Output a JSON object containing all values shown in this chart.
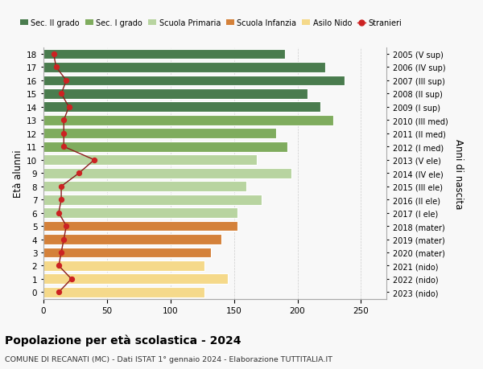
{
  "ages": [
    18,
    17,
    16,
    15,
    14,
    13,
    12,
    11,
    10,
    9,
    8,
    7,
    6,
    5,
    4,
    3,
    2,
    1,
    0
  ],
  "years": [
    "2005 (V sup)",
    "2006 (IV sup)",
    "2007 (III sup)",
    "2008 (II sup)",
    "2009 (I sup)",
    "2010 (III med)",
    "2011 (II med)",
    "2012 (I med)",
    "2013 (V ele)",
    "2014 (IV ele)",
    "2015 (III ele)",
    "2016 (II ele)",
    "2017 (I ele)",
    "2018 (mater)",
    "2019 (mater)",
    "2020 (mater)",
    "2021 (nido)",
    "2022 (nido)",
    "2023 (nido)"
  ],
  "bar_values": [
    190,
    222,
    237,
    208,
    218,
    228,
    183,
    192,
    168,
    195,
    160,
    172,
    153,
    153,
    140,
    132,
    127,
    145,
    127
  ],
  "stranieri": [
    8,
    10,
    18,
    14,
    20,
    16,
    16,
    16,
    40,
    28,
    14,
    14,
    12,
    18,
    16,
    14,
    12,
    22,
    12
  ],
  "bar_colors": [
    "#4a7c4e",
    "#4a7c4e",
    "#4a7c4e",
    "#4a7c4e",
    "#4a7c4e",
    "#7fac5e",
    "#7fac5e",
    "#7fac5e",
    "#b8d4a0",
    "#b8d4a0",
    "#b8d4a0",
    "#b8d4a0",
    "#b8d4a0",
    "#d4813a",
    "#d4813a",
    "#d4813a",
    "#f5d98a",
    "#f5d98a",
    "#f5d98a"
  ],
  "legend_labels": [
    "Sec. II grado",
    "Sec. I grado",
    "Scuola Primaria",
    "Scuola Infanzia",
    "Asilo Nido",
    "Stranieri"
  ],
  "legend_colors": [
    "#4a7c4e",
    "#7fac5e",
    "#b8d4a0",
    "#d4813a",
    "#f5d98a",
    "#cc2222"
  ],
  "ylabel_left": "Età alunni",
  "ylabel_right": "Anni di nascita",
  "title": "Popolazione per età scolastica - 2024",
  "subtitle": "COMUNE DI RECANATI (MC) - Dati ISTAT 1° gennaio 2024 - Elaborazione TUTTITALIA.IT",
  "xlim": [
    0,
    270
  ],
  "xticks": [
    0,
    50,
    100,
    150,
    200,
    250
  ],
  "ylim": [
    -0.5,
    18.5
  ],
  "bg_color": "#f8f8f8",
  "grid_color": "#cccccc",
  "bar_edgecolor": "white",
  "stranieri_line_color": "#8b1a1a",
  "stranieri_dot_color": "#cc2222"
}
